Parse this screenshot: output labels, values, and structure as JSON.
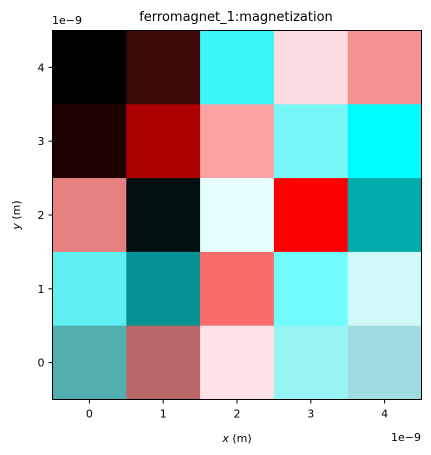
{
  "chart_data": {
    "type": "heatmap",
    "title": "ferromagnet_1:magnetization",
    "xlabel_var": "x",
    "xlabel_unit": " (m)",
    "ylabel_var": "y",
    "ylabel_unit": " (m)",
    "x_ticks": [
      "0",
      "1",
      "2",
      "3",
      "4"
    ],
    "y_ticks": [
      "0",
      "1",
      "2",
      "3",
      "4"
    ],
    "x_offset_text": "1e−9",
    "y_offset_text": "1e−9",
    "xlim": [
      -0.5,
      4.5
    ],
    "ylim": [
      -0.5,
      4.5
    ],
    "rows_top_to_bottom": [
      [
        "#000000",
        "#3d0808",
        "#3bf6f6",
        "#fddde1",
        "#f59190"
      ],
      [
        "#200000",
        "#ad0000",
        "#fca2a2",
        "#77f7f7",
        "#00fdfd"
      ],
      [
        "#e6807e",
        "#000f0f",
        "#e6fdfd",
        "#fc0000",
        "#00abab"
      ],
      [
        "#5ef0f0",
        "#079393",
        "#f96c6a",
        "#70fcfc",
        "#d0f8f8"
      ],
      [
        "#53afaf",
        "#b96768",
        "#fee2e5",
        "#98f3f4",
        "#a0dcdf"
      ]
    ]
  }
}
